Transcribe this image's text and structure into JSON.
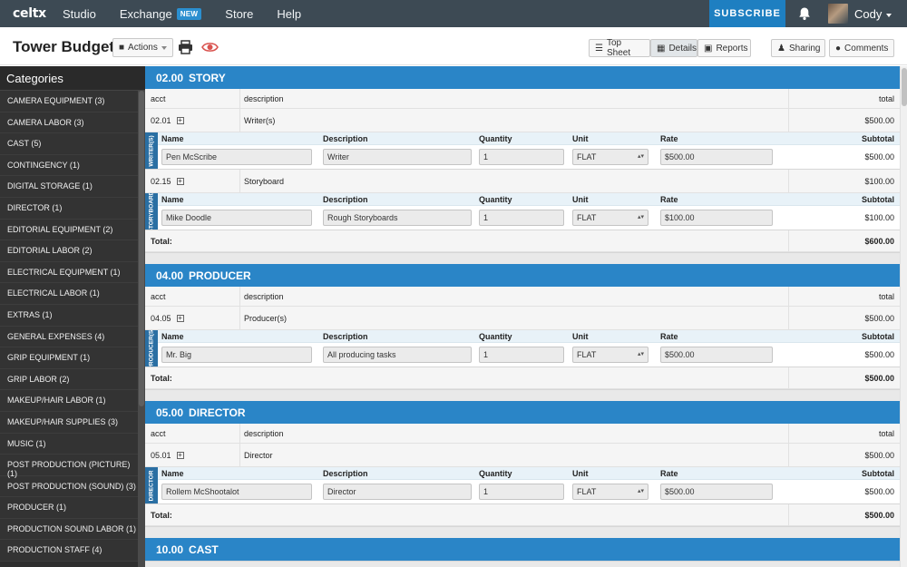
{
  "nav": {
    "logo": "celtx",
    "items": [
      "Studio",
      "Exchange",
      "Store",
      "Help"
    ],
    "exchange_badge": "NEW",
    "subscribe": "SUBSCRIBE",
    "user": "Cody"
  },
  "titlebar": {
    "title": "Tower Budget",
    "actions": "Actions",
    "top_sheet": "Top Sheet",
    "details": "Details",
    "reports": "Reports",
    "sharing": "Sharing",
    "comments": "Comments"
  },
  "sidebar": {
    "heading": "Categories",
    "items": [
      "CAMERA EQUIPMENT (3)",
      "CAMERA LABOR (3)",
      "CAST (5)",
      "CONTINGENCY (1)",
      "DIGITAL STORAGE (1)",
      "DIRECTOR (1)",
      "EDITORIAL EQUIPMENT (2)",
      "EDITORIAL LABOR (2)",
      "ELECTRICAL EQUIPMENT (1)",
      "ELECTRICAL LABOR (1)",
      "EXTRAS (1)",
      "GENERAL EXPENSES (4)",
      "GRIP EQUIPMENT (1)",
      "GRIP LABOR (2)",
      "MAKEUP/HAIR LABOR (1)",
      "MAKEUP/HAIR SUPPLIES (3)",
      "MUSIC (1)",
      "POST PRODUCTION (PICTURE) (1)",
      "POST PRODUCTION (SOUND) (3)",
      "PRODUCER (1)",
      "PRODUCTION SOUND LABOR (1)",
      "PRODUCTION STAFF (4)"
    ]
  },
  "table": {
    "col_acct": "acct",
    "col_desc": "description",
    "col_total": "total",
    "d_name": "Name",
    "d_desc": "Description",
    "d_qty": "Quantity",
    "d_unit": "Unit",
    "d_rate": "Rate",
    "d_sub": "Subtotal",
    "total_label": "Total:"
  },
  "sections": [
    {
      "num": "02.00",
      "name": "STORY",
      "total": "$600.00",
      "accounts": [
        {
          "acct": "02.01",
          "desc": "Writer(s)",
          "total": "$500.00",
          "tab": "WRITER(S)",
          "line": {
            "name": "Pen McScribe",
            "desc": "Writer",
            "qty": "1",
            "unit": "FLAT",
            "rate": "$500.00",
            "sub": "$500.00"
          }
        },
        {
          "acct": "02.15",
          "desc": "Storyboard",
          "total": "$100.00",
          "tab": "STORYBOARD",
          "line": {
            "name": "Mike Doodle",
            "desc": "Rough Storyboards",
            "qty": "1",
            "unit": "FLAT",
            "rate": "$100.00",
            "sub": "$100.00"
          }
        }
      ]
    },
    {
      "num": "04.00",
      "name": "PRODUCER",
      "total": "$500.00",
      "accounts": [
        {
          "acct": "04.05",
          "desc": "Producer(s)",
          "total": "$500.00",
          "tab": "PRODUCER(S)",
          "line": {
            "name": "Mr. Big",
            "desc": "All producing tasks",
            "qty": "1",
            "unit": "FLAT",
            "rate": "$500.00",
            "sub": "$500.00"
          }
        }
      ]
    },
    {
      "num": "05.00",
      "name": "DIRECTOR",
      "total": "$500.00",
      "accounts": [
        {
          "acct": "05.01",
          "desc": "Director",
          "total": "$500.00",
          "tab": "DIRECTOR",
          "line": {
            "name": "Rollem McShootalot",
            "desc": "Director",
            "qty": "1",
            "unit": "FLAT",
            "rate": "$500.00",
            "sub": "$500.00"
          }
        }
      ]
    },
    {
      "num": "10.00",
      "name": "CAST"
    }
  ]
}
